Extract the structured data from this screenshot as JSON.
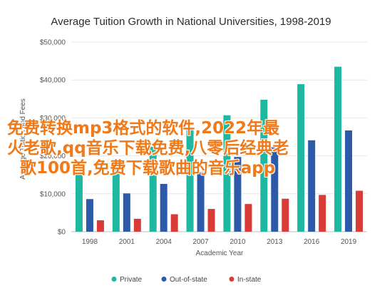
{
  "chart_data": {
    "type": "bar",
    "title": "Average Tuition Growth in National Universities, 1998-2019",
    "xlabel": "Academic Year",
    "ylabel": "Average Tuition and Fees",
    "categories": [
      "1998",
      "2001",
      "2004",
      "2007",
      "2010",
      "2013",
      "2016",
      "2019"
    ],
    "series": [
      {
        "name": "Private",
        "color": "#1fb7a0",
        "values": [
          17200,
          18600,
          22400,
          26800,
          30700,
          34800,
          38900,
          43500
        ]
      },
      {
        "name": "Out-of-state",
        "color": "#2d5aa8",
        "values": [
          8600,
          10100,
          12600,
          15700,
          19700,
          22300,
          24100,
          26700
        ]
      },
      {
        "name": "In-state",
        "color": "#d93c36",
        "values": [
          3000,
          3400,
          4600,
          6000,
          7300,
          8700,
          9700,
          10800
        ]
      }
    ],
    "ylim": [
      0,
      50000
    ],
    "yticks": [
      "$0",
      "$10,000",
      "$20,000",
      "$30,000",
      "$40,000",
      "$50,000"
    ],
    "grid": true,
    "legend_position": "bottom"
  },
  "overlay_text": {
    "line1": "免费转换mp3格式的软件,2022年最",
    "line2": "火老歌,qq音乐下载免费,八零后经典老",
    "line3": "歌100首,免费下载歌曲的音乐app"
  }
}
